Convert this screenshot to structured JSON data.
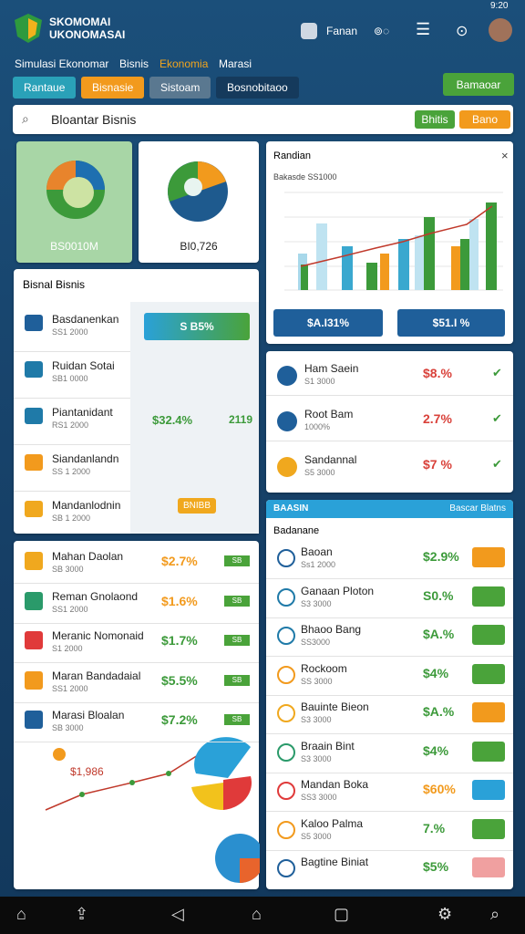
{
  "header": {
    "title_line1": "SKOMOMAI",
    "title_line2": "UKONOMASAI",
    "user": "Fanan",
    "time": "9:20"
  },
  "nav": [
    "Simulasi Ekonomar",
    "Bisnis",
    "Ekonomia",
    "Marasi"
  ],
  "tabs": [
    "Rantaue",
    "Bisnasie",
    "Sistoam",
    "Bosnobitaoo"
  ],
  "action_button": "Bamaoar",
  "search": {
    "title": "Bloantar Bisnis",
    "buttons": [
      "Bhitis",
      "Bano"
    ]
  },
  "summary_cards": [
    "BS0010M",
    "BI0,726"
  ],
  "chart_panel": {
    "title": "Randian",
    "subtitle": "Bakasde SS1000",
    "buttons": [
      "$A.I31%",
      "$51.I %"
    ]
  },
  "business_list": {
    "title": "Bisnal Bisnis",
    "highlight": "S B5%",
    "value": "$32.4%",
    "badge": "2119",
    "tag": "BNIBB",
    "rows": [
      {
        "name": "Basdanenkan",
        "sub": "SS1 2000"
      },
      {
        "name": "Ruidan Sotai",
        "sub": "SB1 0000"
      },
      {
        "name": "Piantanidant",
        "sub": "RS1 2000"
      },
      {
        "name": "Siandanlandn",
        "sub": "SS 1 2000"
      },
      {
        "name": "Mandanlodnin",
        "sub": "SB 1 2000"
      }
    ]
  },
  "watch_list": [
    {
      "name": "Ham Saein",
      "sub": "S1 3000",
      "value": "$8.%"
    },
    {
      "name": "Root Bam",
      "sub": "1000%",
      "value": "2.7%"
    },
    {
      "name": "Sandannal",
      "sub": "S5 3000",
      "value": "$7 %"
    }
  ],
  "rates_list": {
    "chart_label": "$1,986",
    "rows": [
      {
        "name": "Mahan Daolan",
        "sub": "SB 3000",
        "value": "$2.7%",
        "badge": "SB"
      },
      {
        "name": "Reman Gnolaond",
        "sub": "SS1 2000",
        "value": "$1.6%",
        "badge": "SB"
      },
      {
        "name": "Meranic Nomonaid",
        "sub": "S1 2000",
        "value": "$1.7%",
        "badge": "SB"
      },
      {
        "name": "Maran Bandadaial",
        "sub": "SS1 2000",
        "value": "$5.5%",
        "badge": "SB"
      },
      {
        "name": "Marasi Bloalan",
        "sub": "SB 3000",
        "value": "$7.2%",
        "badge": "SB"
      }
    ]
  },
  "market_panel": {
    "title": "BAASIN",
    "link": "Bascar Blatns",
    "subtitle": "Badanane",
    "rows": [
      {
        "name": "Baoan",
        "sub": "Ss1 2000",
        "value": "$2.9%"
      },
      {
        "name": "Ganaan Ploton",
        "sub": "S3 3000",
        "value": "S0.%"
      },
      {
        "name": "Bhaoo Bang",
        "sub": "SS3000",
        "value": "$A.%"
      },
      {
        "name": "Rockoom",
        "sub": "SS 3000",
        "value": "$4%"
      },
      {
        "name": "Bauinte Bieon",
        "sub": "S3 3000",
        "value": "$A.%"
      },
      {
        "name": "Braain Bint",
        "sub": "S3 3000",
        "value": "$4%"
      },
      {
        "name": "Mandan Boka",
        "sub": "SS3 3000",
        "value": "$60%"
      },
      {
        "name": "Kaloo Palma",
        "sub": "S5 3000",
        "value": "7.%"
      },
      {
        "name": "Bagtine Biniat",
        "sub": "",
        "value": "$5%"
      }
    ]
  }
}
